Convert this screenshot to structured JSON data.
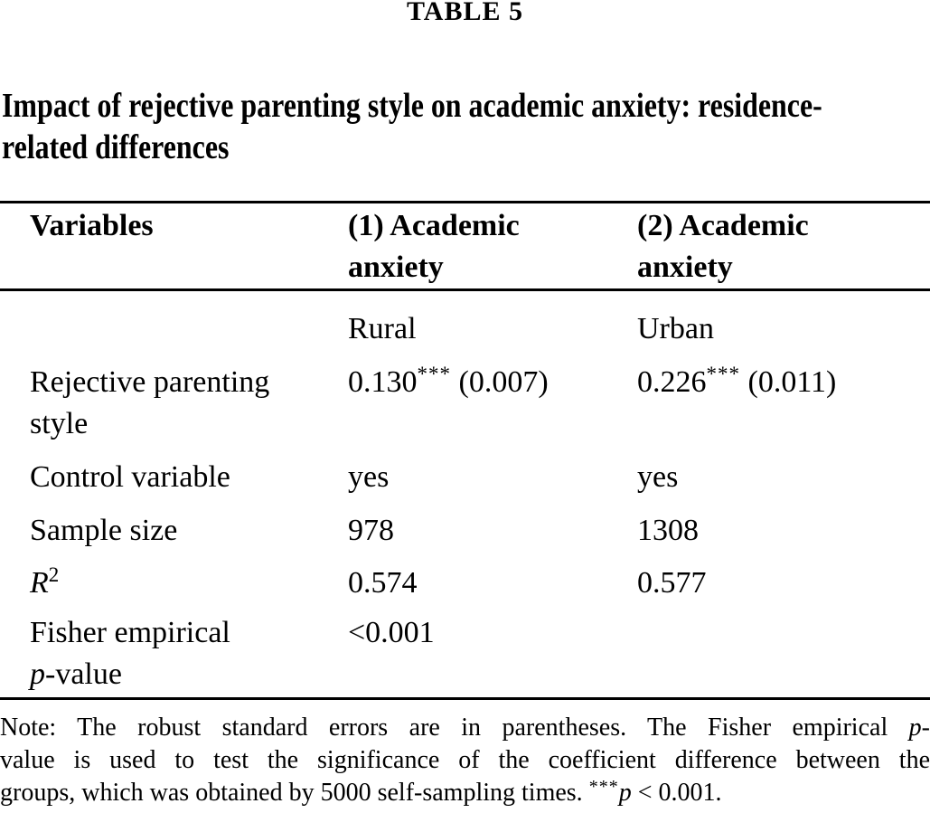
{
  "table_label": "TABLE 5",
  "title": {
    "line1": "Impact of rejective parenting style on academic anxiety: residence-",
    "line2": "related differences"
  },
  "table": {
    "header": {
      "col1": "Variables",
      "col2_line1": "(1) Academic",
      "col2_line2": "anxiety",
      "col3_line1": "(2) Academic",
      "col3_line2": "anxiety"
    },
    "subheader": {
      "col2": "Rural",
      "col3": "Urban"
    },
    "rows": {
      "rejective": {
        "label_line1": "Rejective parenting",
        "label_line2": "style",
        "col2": {
          "coef": "0.130",
          "stars": "***",
          "se": " (0.007)"
        },
        "col3": {
          "coef": "0.226",
          "stars": "***",
          "se": " (0.011)"
        }
      },
      "control": {
        "label": "Control variable",
        "col2": "yes",
        "col3": "yes"
      },
      "sample": {
        "label": "Sample size",
        "col2": "978",
        "col3": "1308"
      },
      "r2": {
        "label_base": "R",
        "label_sup": "2",
        "col2": "0.574",
        "col3": "0.577"
      },
      "fisher": {
        "label_line1": "Fisher empirical",
        "label_italic": "p",
        "label_suffix": "-value",
        "col2": "<0.001",
        "col3": ""
      }
    }
  },
  "note": {
    "line1_pre": "Note: The robust standard errors are in parentheses. The Fisher empirical ",
    "line1_italic": "p",
    "line1_post": "-",
    "line2": "value is used to test the significance of the coefficient difference between the",
    "line3_pre": "groups, which was obtained by 5000 self-sampling times. ",
    "line3_stars": "***",
    "line3_italic": "p",
    "line3_post": " < 0.001."
  },
  "colors": {
    "text": "#000000",
    "background": "#ffffff",
    "rule": "#000000"
  }
}
